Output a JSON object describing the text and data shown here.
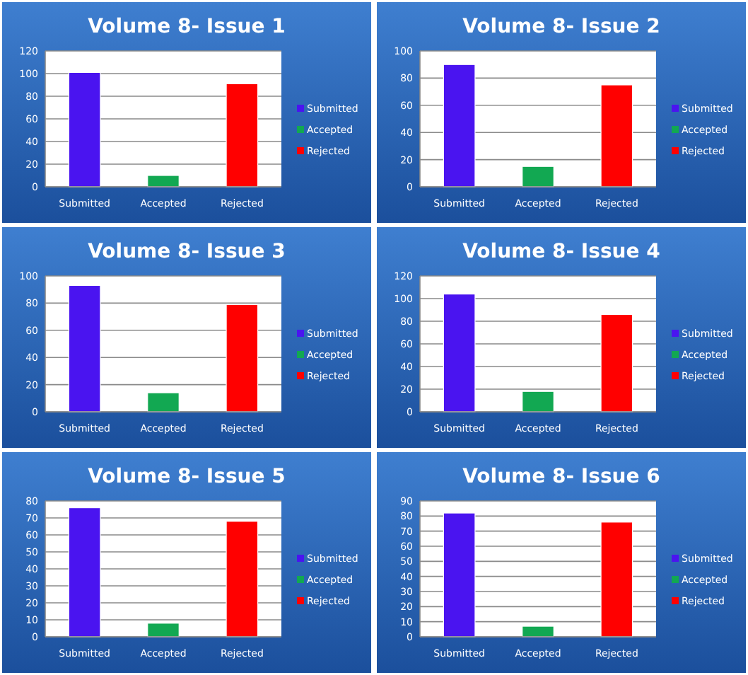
{
  "chart_data": [
    {
      "type": "bar",
      "title": "Volume 8- Issue 1",
      "categories": [
        "Submitted",
        "Accepted",
        "Rejected"
      ],
      "series": [
        {
          "name": "Submitted",
          "color": "#4a14f0",
          "values": [
            101,
            null,
            null
          ]
        },
        {
          "name": "Accepted",
          "color": "#12a852",
          "values": [
            null,
            10,
            null
          ]
        },
        {
          "name": "Rejected",
          "color": "#ff0000",
          "values": [
            null,
            null,
            91
          ]
        }
      ],
      "ylim": [
        0,
        120
      ],
      "yticks": [
        0,
        20,
        40,
        60,
        80,
        100,
        120
      ],
      "grid": "y",
      "legend": "right"
    },
    {
      "type": "bar",
      "title": "Volume 8- Issue 2",
      "categories": [
        "Submitted",
        "Accepted",
        "Rejected"
      ],
      "series": [
        {
          "name": "Submitted",
          "color": "#4a14f0",
          "values": [
            90,
            null,
            null
          ]
        },
        {
          "name": "Accepted",
          "color": "#12a852",
          "values": [
            null,
            15,
            null
          ]
        },
        {
          "name": "Rejected",
          "color": "#ff0000",
          "values": [
            null,
            null,
            75
          ]
        }
      ],
      "ylim": [
        0,
        100
      ],
      "yticks": [
        0,
        20,
        40,
        60,
        80,
        100
      ],
      "grid": "y",
      "legend": "right"
    },
    {
      "type": "bar",
      "title": "Volume 8- Issue 3",
      "categories": [
        "Submitted",
        "Accepted",
        "Rejected"
      ],
      "series": [
        {
          "name": "Submitted",
          "color": "#4a14f0",
          "values": [
            93,
            null,
            null
          ]
        },
        {
          "name": "Accepted",
          "color": "#12a852",
          "values": [
            null,
            14,
            null
          ]
        },
        {
          "name": "Rejected",
          "color": "#ff0000",
          "values": [
            null,
            null,
            79
          ]
        }
      ],
      "ylim": [
        0,
        100
      ],
      "yticks": [
        0,
        20,
        40,
        60,
        80,
        100
      ],
      "grid": "y",
      "legend": "right"
    },
    {
      "type": "bar",
      "title": "Volume 8- Issue 4",
      "categories": [
        "Submitted",
        "Accepted",
        "Rejected"
      ],
      "series": [
        {
          "name": "Submitted",
          "color": "#4a14f0",
          "values": [
            104,
            null,
            null
          ]
        },
        {
          "name": "Accepted",
          "color": "#12a852",
          "values": [
            null,
            18,
            null
          ]
        },
        {
          "name": "Rejected",
          "color": "#ff0000",
          "values": [
            null,
            null,
            86
          ]
        }
      ],
      "ylim": [
        0,
        120
      ],
      "yticks": [
        0,
        20,
        40,
        60,
        80,
        100,
        120
      ],
      "grid": "y",
      "legend": "right"
    },
    {
      "type": "bar",
      "title": "Volume 8- Issue 5",
      "categories": [
        "Submitted",
        "Accepted",
        "Rejected"
      ],
      "series": [
        {
          "name": "Submitted",
          "color": "#4a14f0",
          "values": [
            76,
            null,
            null
          ]
        },
        {
          "name": "Accepted",
          "color": "#12a852",
          "values": [
            null,
            8,
            null
          ]
        },
        {
          "name": "Rejected",
          "color": "#ff0000",
          "values": [
            null,
            null,
            68
          ]
        }
      ],
      "ylim": [
        0,
        80
      ],
      "yticks": [
        0,
        10,
        20,
        30,
        40,
        50,
        60,
        70,
        80
      ],
      "grid": "y",
      "legend": "right"
    },
    {
      "type": "bar",
      "title": "Volume 8- Issue 6",
      "categories": [
        "Submitted",
        "Accepted",
        "Rejected"
      ],
      "series": [
        {
          "name": "Submitted",
          "color": "#4a14f0",
          "values": [
            82,
            null,
            null
          ]
        },
        {
          "name": "Accepted",
          "color": "#12a852",
          "values": [
            null,
            7,
            null
          ]
        },
        {
          "name": "Rejected",
          "color": "#ff0000",
          "values": [
            null,
            null,
            76
          ]
        }
      ],
      "ylim": [
        0,
        90
      ],
      "yticks": [
        0,
        10,
        20,
        30,
        40,
        50,
        60,
        70,
        80,
        90
      ],
      "grid": "y",
      "legend": "right"
    }
  ]
}
